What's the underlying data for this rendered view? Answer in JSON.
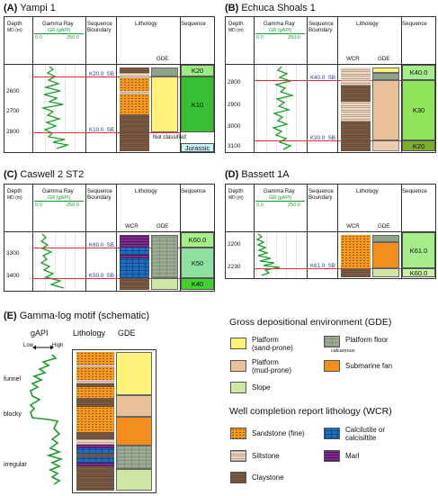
{
  "panels": {
    "a": {
      "letter": "(A)",
      "well": "Yampi 1",
      "depth_label": "Depth",
      "md_label": "MD (m)",
      "gamma_label": "Gamma Ray",
      "gr_unit": "GR (gAPI)",
      "gr_min": "0.0",
      "gr_max": "250.0",
      "seq_boundary_label": "Sequence Boundary",
      "lithology_label": "Lithology",
      "sequence_label": "Sequence",
      "wcr": "",
      "gde": "GDE",
      "ticks": [
        "2600",
        "2700",
        "2800"
      ],
      "boundaries": [
        "K20.0_SB",
        "K10.0_SB"
      ],
      "sequences": [
        "K20",
        "K10",
        "Jurassic"
      ],
      "note": "Not classified"
    },
    "b": {
      "letter": "(B)",
      "well": "Echuca Shoals 1",
      "depth_label": "Depth",
      "md_label": "MD (m)",
      "gamma_label": "Gamma Ray",
      "gr_unit": "GR (gAPI)",
      "gr_min": "0.0",
      "gr_max": "250.0",
      "seq_boundary_label": "Sequence Boundary",
      "lithology_label": "Lithology",
      "sequence_label": "Sequence",
      "wcr": "WCR",
      "gde": "GDE",
      "ticks": [
        "2800",
        "2900",
        "3000",
        "3100"
      ],
      "boundaries": [
        "K40.0_SB",
        "K30.0_SB"
      ],
      "sequences": [
        "K40.0",
        "K30",
        "K20"
      ]
    },
    "c": {
      "letter": "(C)",
      "well": "Caswell 2 ST2",
      "depth_label": "Depth",
      "md_label": "MD (m)",
      "gamma_label": "Gamma Ray",
      "gr_unit": "GR (gAPI)",
      "gr_min": "0.0",
      "gr_max": "250.0",
      "seq_boundary_label": "Sequence Boundary",
      "lithology_label": "Lithology",
      "sequence_label": "Sequence",
      "wcr": "WCR",
      "gde": "GDE",
      "ticks": [
        "3300",
        "3400"
      ],
      "boundaries": [
        "K60.0_SB",
        "K50.0_SB"
      ],
      "sequences": [
        "K60.0",
        "K50",
        "K40"
      ]
    },
    "d": {
      "letter": "(D)",
      "well": "Bassett 1A",
      "depth_label": "Depth",
      "md_label": "MD (m)",
      "gamma_label": "Gamma Ray",
      "gr_unit": "GR (gAPI)",
      "gr_min": "0.0",
      "gr_max": "250.0",
      "seq_boundary_label": "Sequence Boundary",
      "lithology_label": "Lithology",
      "sequence_label": "Sequence",
      "wcr": "WCR",
      "gde": "GDE",
      "ticks": [
        "2200",
        "2230"
      ],
      "boundaries": [
        "K61.0_SB"
      ],
      "sequences": [
        "K61.0",
        "K60.0"
      ]
    },
    "e": {
      "letter": "(E)",
      "title": "Gamma-log motif (schematic)",
      "gapi": "gAPI",
      "low": "Low",
      "high": "High",
      "lithology": "Lithology",
      "gde": "GDE",
      "motifs": [
        "funnel",
        "blocky",
        "irregular"
      ]
    }
  },
  "legend_gde": {
    "title": "Gross depositional environment (GDE)",
    "items": {
      "sand_prone": "Platform\n(sand-prone)",
      "mud_prone": "Platform\n(mud-prone)",
      "slope": "Slope",
      "floor": "Platform floor",
      "floor_sub": "calcareous",
      "fan": "Submarine fan"
    }
  },
  "legend_wcr": {
    "title": "Well completion report lithology (WCR)",
    "items": {
      "sandstone": "Sandstone (fine)",
      "siltstone": "Siltstone",
      "claystone": "Claystone",
      "calcilutite": "Calcilutite or\ncalcisiltite",
      "marl": "Marl"
    }
  },
  "colors": {
    "gamma_curve": "#1a9d2b",
    "boundary_line": "#e03030",
    "sequence_green": "#41c43a",
    "sequence_light": "#a6ec8b"
  }
}
